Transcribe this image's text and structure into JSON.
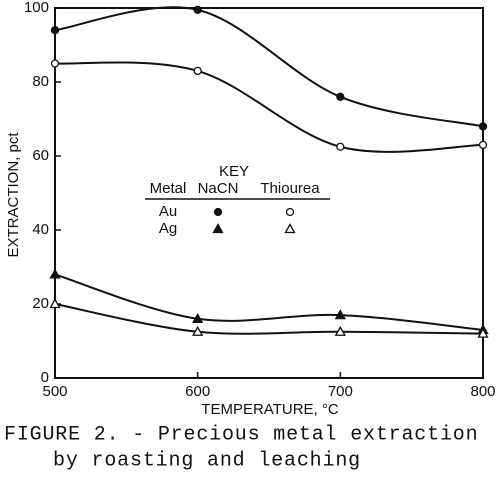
{
  "chart_data": {
    "type": "line",
    "x": [
      500,
      600,
      700,
      800
    ],
    "series": [
      {
        "values": [
          94,
          99.5,
          76,
          68
        ],
        "marker": "circle",
        "filled": true,
        "color": "#111111"
      },
      {
        "values": [
          85,
          83,
          62.5,
          63
        ],
        "marker": "circle",
        "filled": false,
        "color": "#111111"
      },
      {
        "values": [
          28,
          16,
          17,
          13
        ],
        "marker": "triangle",
        "filled": true,
        "color": "#111111"
      },
      {
        "values": [
          20,
          12.5,
          12.5,
          12
        ],
        "marker": "triangle",
        "filled": false,
        "color": "#111111"
      }
    ],
    "xlim": [
      500,
      800
    ],
    "xticks": [
      500,
      600,
      700,
      800
    ],
    "ylim": [
      0,
      100
    ],
    "yticks": [
      0,
      20,
      40,
      60,
      80,
      100
    ],
    "xlabel": "TEMPERATURE, °C",
    "ylabel": "EXTRACTION, pct",
    "legend": {
      "title": "KEY",
      "headers": [
        "Metal",
        "NaCN",
        "Thiourea"
      ],
      "rows": [
        "Au",
        "Ag"
      ]
    },
    "caption": [
      "FIGURE 2. - Precious metal extraction",
      "by roasting and leaching"
    ]
  }
}
